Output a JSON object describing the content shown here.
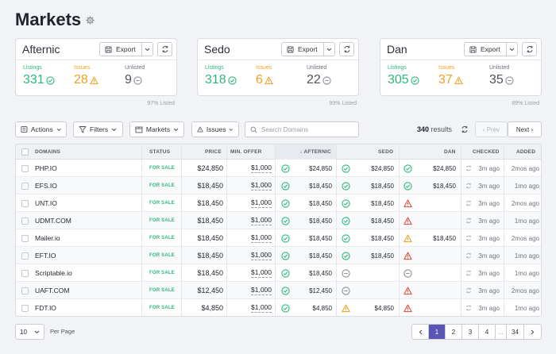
{
  "page": {
    "title": "Markets"
  },
  "cards": [
    {
      "name": "Afternic",
      "export_label": "Export",
      "listings_label": "Listings",
      "listings": "331",
      "issues_label": "Issues",
      "issues": "28",
      "unlisted_label": "Unlisted",
      "unlisted": "9",
      "listed": "97% Listed"
    },
    {
      "name": "Sedo",
      "export_label": "Export",
      "listings_label": "Listings",
      "listings": "318",
      "issues_label": "Issues",
      "issues": "6",
      "unlisted_label": "Unlisted",
      "unlisted": "22",
      "listed": "93% Listed"
    },
    {
      "name": "Dan",
      "export_label": "Export",
      "listings_label": "Listings",
      "listings": "305",
      "issues_label": "Issues",
      "issues": "37",
      "unlisted_label": "Unlisted",
      "unlisted": "35",
      "listed": "89% Listed"
    }
  ],
  "toolbar": {
    "actions": "Actions",
    "filters": "Filters",
    "markets": "Markets",
    "issues": "Issues",
    "search_placeholder": "Search Domains",
    "results_count": "340",
    "results_label": "results",
    "prev": "‹ Prev",
    "next": "Next ›"
  },
  "table": {
    "headers": {
      "domains": "DOMAINS",
      "status": "STATUS",
      "price": "PRICE",
      "min_offer": "MIN. OFFER",
      "afternic": "↓ AFTERNIC",
      "sedo": "SEDO",
      "dan": "DAN",
      "checked": "CHECKED",
      "added": "ADDED"
    },
    "rows": [
      {
        "domain": "PHP.IO",
        "status": "FOR SALE",
        "price": "$24,850",
        "offer": "$1,000",
        "af": "ok",
        "af_price": "$24,850",
        "se": "ok",
        "se_price": "$24,850",
        "da": "ok",
        "da_price": "$24,850",
        "checked": "3m ago",
        "added": "2mos ago"
      },
      {
        "domain": "EFS.IO",
        "status": "FOR SALE",
        "price": "$18,450",
        "offer": "$1,000",
        "af": "ok",
        "af_price": "$18,450",
        "se": "ok",
        "se_price": "$18,450",
        "da": "ok",
        "da_price": "$18,450",
        "checked": "3m ago",
        "added": "1mo ago"
      },
      {
        "domain": "UNT.IO",
        "status": "FOR SALE",
        "price": "$18,450",
        "offer": "$1,000",
        "af": "ok",
        "af_price": "$18,450",
        "se": "ok",
        "se_price": "$18,450",
        "da": "error",
        "da_price": "",
        "checked": "3m ago",
        "added": "2mos ago"
      },
      {
        "domain": "UDMT.COM",
        "status": "FOR SALE",
        "price": "$18,450",
        "offer": "$1,000",
        "af": "ok",
        "af_price": "$18,450",
        "se": "ok",
        "se_price": "$18,450",
        "da": "error",
        "da_price": "",
        "checked": "3m ago",
        "added": "1mo ago"
      },
      {
        "domain": "Mailer.io",
        "status": "FOR SALE",
        "price": "$18,450",
        "offer": "$1,000",
        "af": "ok",
        "af_price": "$18,450",
        "se": "ok",
        "se_price": "$18,450",
        "da": "warn",
        "da_price": "$18,450",
        "checked": "3m ago",
        "added": "2mos ago"
      },
      {
        "domain": "EFT.IO",
        "status": "FOR SALE",
        "price": "$18,450",
        "offer": "$1,000",
        "af": "ok",
        "af_price": "$18,450",
        "se": "ok",
        "se_price": "$18,450",
        "da": "error",
        "da_price": "",
        "checked": "3m ago",
        "added": "1mo ago"
      },
      {
        "domain": "Scriptable.io",
        "status": "FOR SALE",
        "price": "$18,450",
        "offer": "$1,000",
        "af": "ok",
        "af_price": "$18,450",
        "se": "minus",
        "se_price": "",
        "da": "minus",
        "da_price": "",
        "checked": "3m ago",
        "added": "1mo ago"
      },
      {
        "domain": "UAFT.COM",
        "status": "FOR SALE",
        "price": "$12,450",
        "offer": "$1,000",
        "af": "ok",
        "af_price": "$12,450",
        "se": "minus",
        "se_price": "",
        "da": "error",
        "da_price": "",
        "checked": "3m ago",
        "added": "2mos ago"
      },
      {
        "domain": "FDT.IO",
        "status": "FOR SALE",
        "price": "$4,850",
        "offer": "$1,000",
        "af": "ok",
        "af_price": "$4,850",
        "se": "warn",
        "se_price": "$4,850",
        "da": "error",
        "da_price": "",
        "checked": "3m ago",
        "added": "1mo ago"
      }
    ]
  },
  "footer": {
    "per_page_value": "10",
    "per_page_label": "Per Page",
    "pages": [
      "1",
      "2",
      "3",
      "4",
      "...",
      "34"
    ],
    "current_page": "1"
  },
  "colors": {
    "green": "#2fb87c",
    "orange": "#f0a020",
    "red": "#e0473c",
    "gray": "#8a9099",
    "accent": "#5b56b5"
  }
}
